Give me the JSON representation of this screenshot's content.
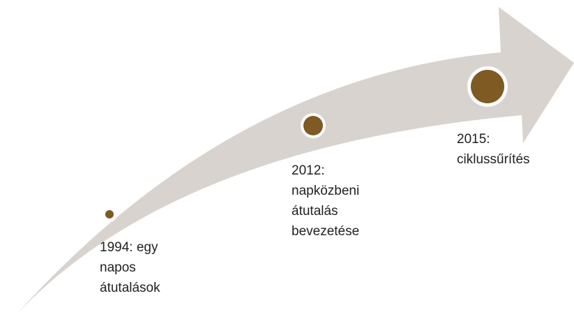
{
  "nodes": [
    {
      "label": [
        "1994: egy",
        "napos",
        "átutalások"
      ]
    },
    {
      "label": [
        "2012:",
        "napközbeni",
        "átutalás",
        "bevezetése"
      ]
    },
    {
      "label": [
        "2015:",
        "ciklussűrítés"
      ]
    }
  ]
}
